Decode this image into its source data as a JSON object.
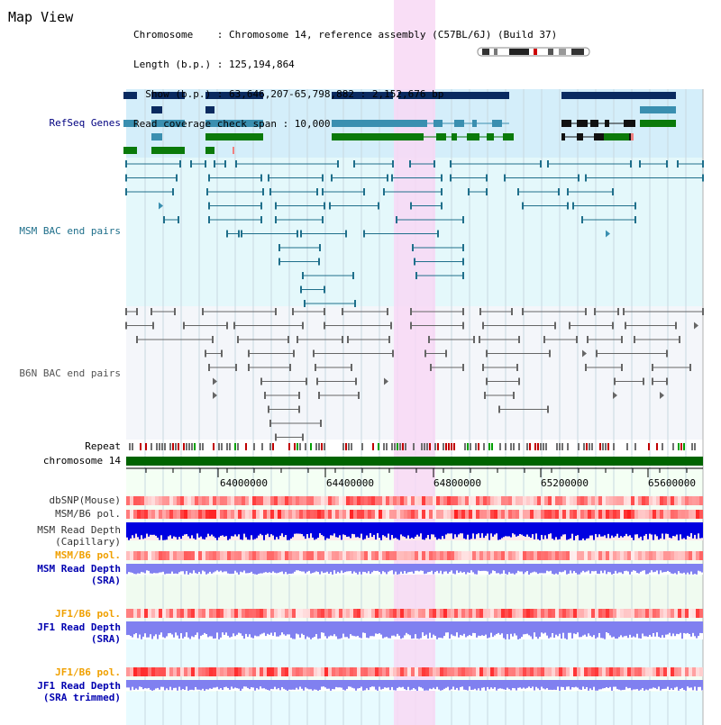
{
  "page": {
    "title": "Map View"
  },
  "info": {
    "lines": [
      "Chromosome    : Chromosome 14, reference assembly (C57BL/6J) (Build 37)",
      "Length (b.p.) : 125,194,864",
      "  Show (b.p.) : 63,646,207-65,798,882 : 2,152,676 bp",
      "Read coverage check span : 10,000"
    ]
  },
  "tracks": {
    "refseq": "RefSeq Genes",
    "msm_bac": "MSM BAC end pairs",
    "b6n_bac": "B6N BAC end pairs",
    "repeat": "Repeat",
    "chromosome": "chromosome 14",
    "dbsnp": "dbSNP(Mouse)",
    "msm_b6_pol": "MSM/B6 pol.",
    "msm_read_cap_1": "MSM Read Depth",
    "msm_read_cap_2": "(Capillary)",
    "msm_b6_pol_2": "MSM/B6 pol.",
    "msm_read_sra_1": "MSM Read Depth",
    "msm_read_sra_2": "(SRA)",
    "jf1_b6_pol": "JF1/B6 pol.",
    "jf1_read_sra_1": "JF1 Read Depth",
    "jf1_read_sra_2": "(SRA)",
    "jf1_b6_pol_2": "JF1/B6 pol.",
    "jf1_read_trim_1": "JF1 Read Depth",
    "jf1_read_trim_2": "(SRA trimmed)"
  },
  "axis": {
    "ticks": [
      "64000000",
      "64400000",
      "64800000",
      "65200000",
      "65600000"
    ]
  },
  "colors": {
    "highlight": "#f8d8f4",
    "refseq_bg": "#d4eefa",
    "msm_bg": "#e4f8fb",
    "b6n_bg": "#f4f6fa",
    "navy_gene": "#0a2a60",
    "teal_gene": "#3a8fb0",
    "green_gene": "#0a7a0a",
    "chrom_bar": "#006400",
    "snp": "#f08080",
    "depth_dark": "#0000e0",
    "depth_light": "#8080f0",
    "lower_bg": "#f0fbf0"
  }
}
